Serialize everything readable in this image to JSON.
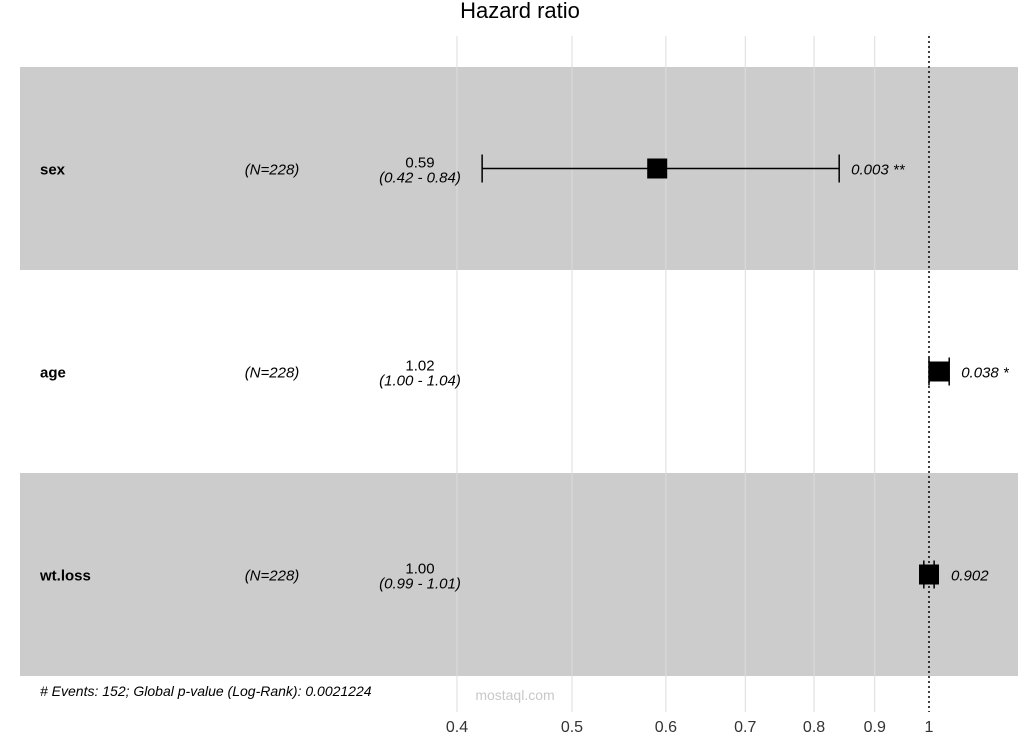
{
  "chart_data": {
    "type": "forest",
    "title": "Hazard ratio",
    "x_scale": "log",
    "xlim": [
      0.4,
      1.08
    ],
    "reference_line": 1,
    "x_ticks": [
      {
        "value": 0.4,
        "label": "0.4"
      },
      {
        "value": 0.5,
        "label": "0.5"
      },
      {
        "value": 0.6,
        "label": "0.6"
      },
      {
        "value": 0.7,
        "label": "0.7"
      },
      {
        "value": 0.8,
        "label": "0.8"
      },
      {
        "value": 0.9,
        "label": "0.9"
      },
      {
        "value": 1.0,
        "label": "1"
      }
    ],
    "rows": [
      {
        "variable": "sex",
        "n": "(N=228)",
        "hr": 0.59,
        "lo": 0.42,
        "hi": 0.84,
        "hr_text": "0.59",
        "ci_text": "(0.42 - 0.84)",
        "p_text": "0.003 **",
        "shaded": true
      },
      {
        "variable": "age",
        "n": "(N=228)",
        "hr": 1.02,
        "lo": 1.0,
        "hi": 1.04,
        "hr_text": "1.02",
        "ci_text": "(1.00 - 1.04)",
        "p_text": "0.038 *",
        "shaded": false
      },
      {
        "variable": "wt.loss",
        "n": "(N=228)",
        "hr": 1.0,
        "lo": 0.99,
        "hi": 1.01,
        "hr_text": "1.00",
        "ci_text": "(0.99 - 1.01)",
        "p_text": "0.902",
        "shaded": true
      }
    ],
    "footer": "# Events: 152; Global p-value (Log-Rank): 0.0021224"
  },
  "watermark": "mostaql.com",
  "colors": {
    "band": "#cccccc",
    "grid": "#dcdcdc",
    "ink": "#000000"
  }
}
